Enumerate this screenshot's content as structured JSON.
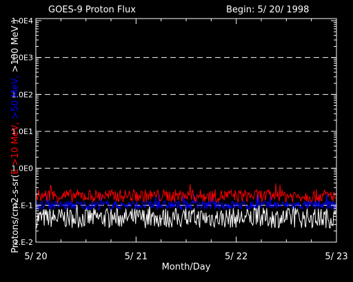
{
  "header": {
    "title": "GOES-9 Proton Flux",
    "begin": "Begin: 5/ 20/ 1998"
  },
  "colors": {
    "background": "#000000",
    "axes": "#ffffff",
    "grid": "#ffffff",
    "series_10mev": "#ff0000",
    "series_50mev": "#0000ff",
    "series_100mev": "#ffffff"
  },
  "chart_data": {
    "type": "line",
    "title": "GOES-9 Proton Flux",
    "subtitle": "Begin: 5/ 20/ 1998",
    "xlabel": "Month/Day",
    "ylabel_parts": [
      {
        "text": "Protons/cm2-s-sr(",
        "color": "#ffffff"
      },
      {
        "text": "E >10 MeV,",
        "color": "#ff0000"
      },
      {
        "text": " >50 MeV,",
        "color": "#0000ff"
      },
      {
        "text": " >100 MeV )",
        "color": "#ffffff"
      }
    ],
    "x_ticks": [
      "5/ 20",
      "5/ 21",
      "5/ 22",
      "5/ 23"
    ],
    "y_ticks": [
      "1.E-2",
      "1.E-1",
      "1.0E0",
      "1.0E1",
      "1.0E2",
      "1.0E3",
      "1.0E4"
    ],
    "ylim": [
      0.01,
      10000
    ],
    "y_scale": "log",
    "grid": "dashed horizontal at decades",
    "series": [
      {
        "name": "E >10 MeV",
        "color": "#ff0000",
        "base": 0.18,
        "spread": 0.35,
        "spike_max": 0.5
      },
      {
        "name": ">50 MeV",
        "color": "#0000ff",
        "base": 0.1,
        "spread": 0.25,
        "spike_max": 0.2
      },
      {
        "name": ">100 MeV",
        "color": "#ffffff",
        "base": 0.045,
        "spread": 0.55,
        "spike_max": 0.1
      }
    ]
  }
}
